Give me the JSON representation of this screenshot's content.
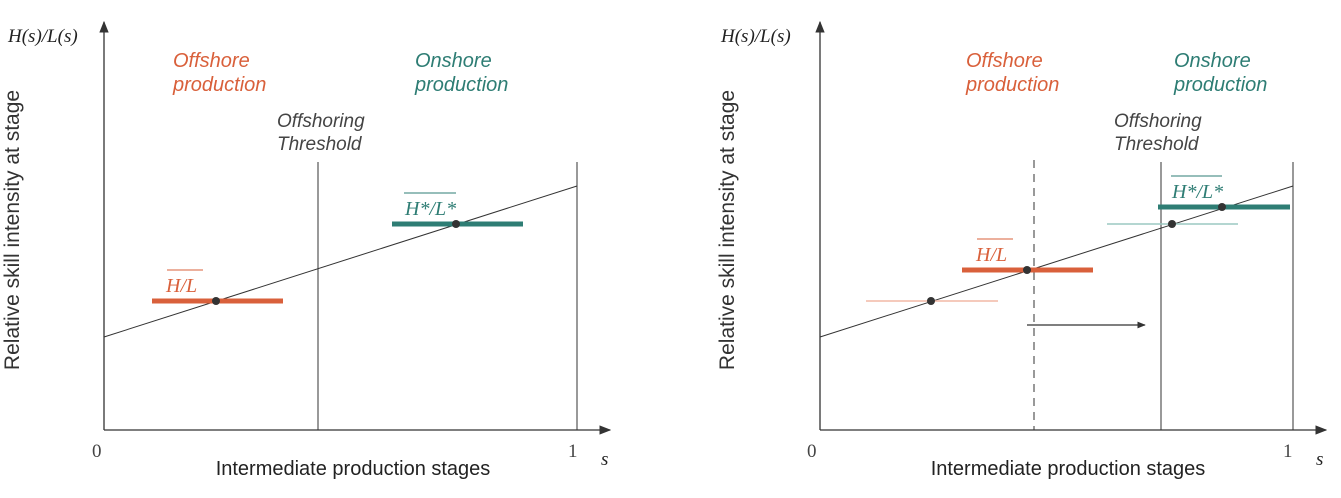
{
  "colors": {
    "offshore": "#d9603b",
    "onshore": "#2e7d74",
    "offshore_light": "#f2b8a6",
    "onshore_light": "#9cc9c2",
    "axis": "#333333",
    "text_dark": "#444444"
  },
  "left_panel": {
    "y_axis_var": "H(s)/L(s)",
    "y_axis_title": "Relative skill intensity at stage",
    "x_axis_title": "Intermediate production stages",
    "x_axis_var": "s",
    "tick_zero": "0",
    "tick_one": "1",
    "offshore_label_line1": "Offshore",
    "offshore_label_line2": "production",
    "onshore_label_line1": "Onshore",
    "onshore_label_line2": "production",
    "threshold_label_line1": "Offshoring",
    "threshold_label_line2": "Threshold",
    "offshore_ratio_label": "H/L",
    "onshore_ratio_label": "H*/L*"
  },
  "right_panel": {
    "y_axis_var": "H(s)/L(s)",
    "y_axis_title": "Relative skill intensity at stage",
    "x_axis_title": "Intermediate production stages",
    "x_axis_var": "s",
    "tick_zero": "0",
    "tick_one": "1",
    "offshore_label_line1": "Offshore",
    "offshore_label_line2": "production",
    "onshore_label_line1": "Onshore",
    "onshore_label_line2": "production",
    "threshold_label_line1": "Offshoring",
    "threshold_label_line2": "Threshold",
    "offshore_ratio_label": "H/L",
    "onshore_ratio_label": "H*/L*"
  }
}
